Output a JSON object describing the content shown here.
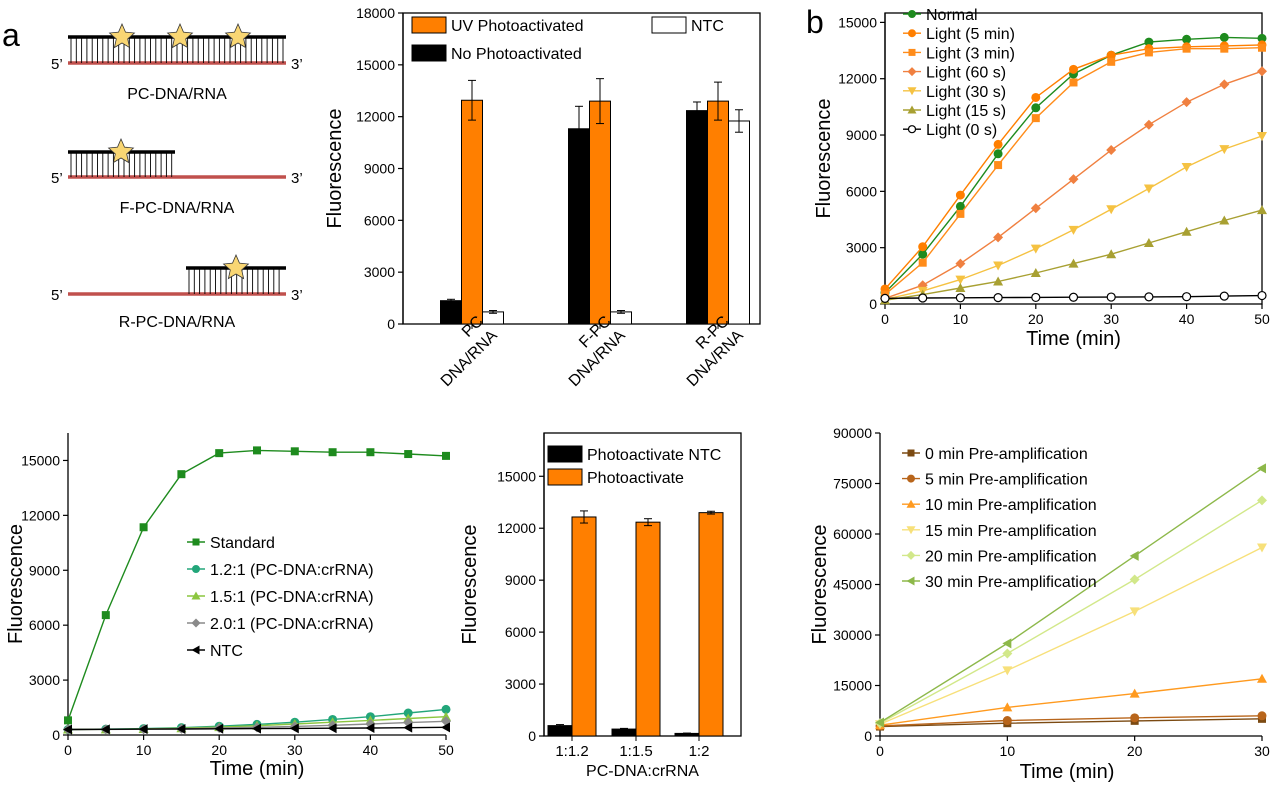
{
  "panel_labels": {
    "a": "a",
    "b": "b"
  },
  "schematics": [
    {
      "label": "PC-DNA/RNA",
      "five": "5’",
      "three": "3’"
    },
    {
      "label": "F-PC-DNA/RNA",
      "five": "5’",
      "three": "3’"
    },
    {
      "label": "R-PC-DNA/RNA",
      "five": "5’",
      "three": "3’"
    }
  ],
  "colors": {
    "orange": "#FF7F00",
    "black": "#000000",
    "green": "#1E8B1E",
    "rna": "#C0504D",
    "star": "#F9D673"
  },
  "chart_data": [
    {
      "id": "bar_a",
      "type": "bar",
      "title": "",
      "xlabel": "",
      "ylabel": "Fluorescence",
      "ylim": [
        0,
        18000
      ],
      "yticks": [
        "0",
        "3000",
        "6000",
        "9000",
        "12000",
        "15000",
        "18000"
      ],
      "categories": [
        [
          "PC",
          "DNA/RNA"
        ],
        [
          "F-PC",
          "DNA/RNA"
        ],
        [
          "R-PC",
          "DNA/RNA"
        ]
      ],
      "legend": [
        "UV Photoactivated",
        "No Photoactivated",
        "NTC"
      ],
      "series": [
        {
          "name": "No Photoactivated",
          "color": "#000000",
          "values": [
            1350,
            11300,
            12350
          ],
          "errors": [
            80,
            1300,
            500
          ]
        },
        {
          "name": "UV Photoactivated",
          "color": "#FF7F00",
          "values": [
            12950,
            12900,
            12900
          ],
          "errors": [
            1150,
            1300,
            1100
          ]
        },
        {
          "name": "NTC",
          "color": "#FFFFFF",
          "values": [
            700,
            700,
            11750
          ],
          "errors": [
            80,
            80,
            650
          ]
        }
      ]
    },
    {
      "id": "line_b",
      "type": "line",
      "xlabel": "Time (min)",
      "ylabel": "Fluorescence",
      "xlim": [
        0,
        50
      ],
      "ylim": [
        0,
        15500
      ],
      "xticks": [
        "0",
        "10",
        "20",
        "30",
        "40",
        "50"
      ],
      "yticks": [
        "0",
        "3000",
        "6000",
        "9000",
        "12000",
        "15000"
      ],
      "x": [
        0,
        5,
        10,
        15,
        20,
        25,
        30,
        35,
        40,
        45,
        50
      ],
      "series": [
        {
          "name": "Normal",
          "color": "#1E8B1E",
          "marker": "circle",
          "values": [
            600,
            2650,
            5200,
            8000,
            10450,
            12250,
            13250,
            13950,
            14100,
            14200,
            14150
          ]
        },
        {
          "name": "Light (5 min)",
          "color": "#FF7F00",
          "marker": "circle",
          "values": [
            800,
            3050,
            5800,
            8500,
            11000,
            12500,
            13250,
            13600,
            13700,
            13750,
            13800
          ]
        },
        {
          "name": "Light (3 min)",
          "color": "#FF8C1A",
          "marker": "square",
          "values": [
            500,
            2200,
            4800,
            7400,
            9900,
            11800,
            12900,
            13400,
            13600,
            13600,
            13650
          ]
        },
        {
          "name": "Light (60 s)",
          "color": "#F08040",
          "marker": "diamond",
          "values": [
            300,
            1000,
            2150,
            3550,
            5100,
            6650,
            8200,
            9550,
            10750,
            11700,
            12400
          ]
        },
        {
          "name": "Light (30 s)",
          "color": "#F5C242",
          "marker": "triangle-down",
          "values": [
            250,
            700,
            1300,
            2050,
            2950,
            3950,
            5050,
            6150,
            7300,
            8250,
            8950
          ]
        },
        {
          "name": "Light (15 s)",
          "color": "#A8A032",
          "marker": "triangle-up",
          "values": [
            200,
            500,
            850,
            1200,
            1650,
            2150,
            2650,
            3250,
            3850,
            4450,
            5000
          ]
        },
        {
          "name": "Light (0 s)",
          "color": "#000000",
          "marker": "open-circle",
          "values": [
            300,
            320,
            330,
            340,
            350,
            360,
            370,
            380,
            390,
            420,
            450
          ]
        }
      ]
    },
    {
      "id": "line_c",
      "type": "line",
      "xlabel": "Time (min)",
      "ylabel": "Fluorescence",
      "xlim": [
        0,
        50
      ],
      "ylim": [
        0,
        16500
      ],
      "xticks": [
        "0",
        "10",
        "20",
        "30",
        "40",
        "50"
      ],
      "yticks": [
        "0",
        "3000",
        "6000",
        "9000",
        "12000",
        "15000"
      ],
      "x": [
        0,
        5,
        10,
        15,
        20,
        25,
        30,
        35,
        40,
        45,
        50
      ],
      "series": [
        {
          "name": "Standard",
          "color": "#1E8B1E",
          "marker": "square",
          "values": [
            800,
            6550,
            11350,
            14250,
            15400,
            15550,
            15500,
            15450,
            15450,
            15350,
            15250
          ]
        },
        {
          "name": "1.2:1 (PC-DNA:crRNA)",
          "color": "#23A67A",
          "marker": "circle",
          "values": [
            300,
            320,
            350,
            400,
            480,
            580,
            700,
            850,
            1000,
            1200,
            1400
          ]
        },
        {
          "name": "1.5:1 (PC-DNA:crRNA)",
          "color": "#8CC63F",
          "marker": "triangle-up",
          "values": [
            300,
            310,
            330,
            370,
            430,
            510,
            600,
            700,
            800,
            900,
            1000
          ]
        },
        {
          "name": "2.0:1 (PC-DNA:crRNA)",
          "color": "#8A8A8A",
          "marker": "diamond",
          "values": [
            300,
            305,
            315,
            340,
            380,
            420,
            470,
            530,
            600,
            680,
            750
          ]
        },
        {
          "name": "NTC",
          "color": "#000000",
          "marker": "triangle-left",
          "values": [
            300,
            310,
            320,
            330,
            340,
            350,
            360,
            370,
            380,
            400,
            420
          ]
        }
      ]
    },
    {
      "id": "bar_d",
      "type": "bar",
      "xlabel": "PC-DNA:crRNA",
      "ylabel": "Fluorescence",
      "ylim": [
        0,
        17500
      ],
      "yticks": [
        "0",
        "3000",
        "6000",
        "9000",
        "12000",
        "15000"
      ],
      "categories": [
        "1:1.2",
        "1:1.5",
        "1:2"
      ],
      "legend": [
        "Photoactivate NTC",
        "Photoactivate"
      ],
      "series": [
        {
          "name": "Photoactivate NTC",
          "color": "#000000",
          "values": [
            600,
            400,
            150
          ],
          "errors": [
            60,
            40,
            20
          ]
        },
        {
          "name": "Photoactivate",
          "color": "#FF7F00",
          "values": [
            12650,
            12350,
            12900
          ],
          "errors": [
            350,
            200,
            80
          ]
        }
      ]
    },
    {
      "id": "line_e",
      "type": "line",
      "xlabel": "Time  (min)",
      "ylabel": "Fluorescence",
      "xlim": [
        0,
        30
      ],
      "ylim": [
        0,
        90000
      ],
      "xticks": [
        "0",
        "10",
        "20",
        "30"
      ],
      "yticks": [
        "0",
        "15000",
        "30000",
        "45000",
        "60000",
        "75000",
        "90000"
      ],
      "x": [
        0,
        10,
        20,
        30
      ],
      "series": [
        {
          "name": "0 min Pre-amplification",
          "color": "#7B4A12",
          "marker": "square",
          "values": [
            2800,
            3800,
            4500,
            5100
          ]
        },
        {
          "name": "5 min Pre-amplification",
          "color": "#B8651B",
          "marker": "circle",
          "values": [
            3000,
            4600,
            5400,
            6000
          ]
        },
        {
          "name": "10 min Pre-amplification",
          "color": "#FF9A1F",
          "marker": "triangle-up",
          "values": [
            3200,
            8500,
            12600,
            17000
          ]
        },
        {
          "name": "15 min Pre-amplification",
          "color": "#F7E07A",
          "marker": "triangle-down",
          "values": [
            3500,
            19500,
            37000,
            56000
          ]
        },
        {
          "name": "20 min Pre-amplification",
          "color": "#D2E88A",
          "marker": "diamond",
          "values": [
            3800,
            24500,
            46500,
            70000
          ]
        },
        {
          "name": "30 min Pre-amplification",
          "color": "#8DB84A",
          "marker": "triangle-left",
          "values": [
            4000,
            27500,
            53500,
            79500
          ]
        }
      ]
    }
  ]
}
